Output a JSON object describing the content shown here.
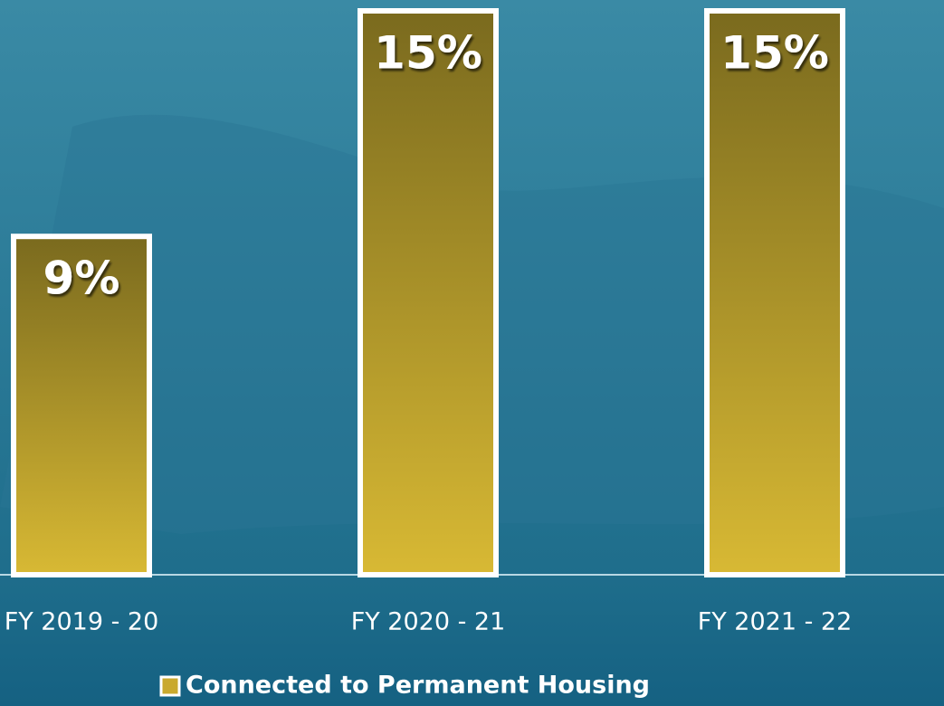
{
  "chart_data": {
    "type": "bar",
    "categories": [
      "FY 2019 - 20",
      "FY 2020 - 21",
      "FY 2021 - 22"
    ],
    "series": [
      {
        "name": "Connected to Permanent Housing",
        "color": "#c9a92e",
        "values": [
          9,
          15,
          15
        ],
        "value_labels": [
          "9%",
          "15%",
          "15%"
        ]
      }
    ],
    "ylim": [
      0,
      15
    ],
    "legend": "bottom"
  }
}
